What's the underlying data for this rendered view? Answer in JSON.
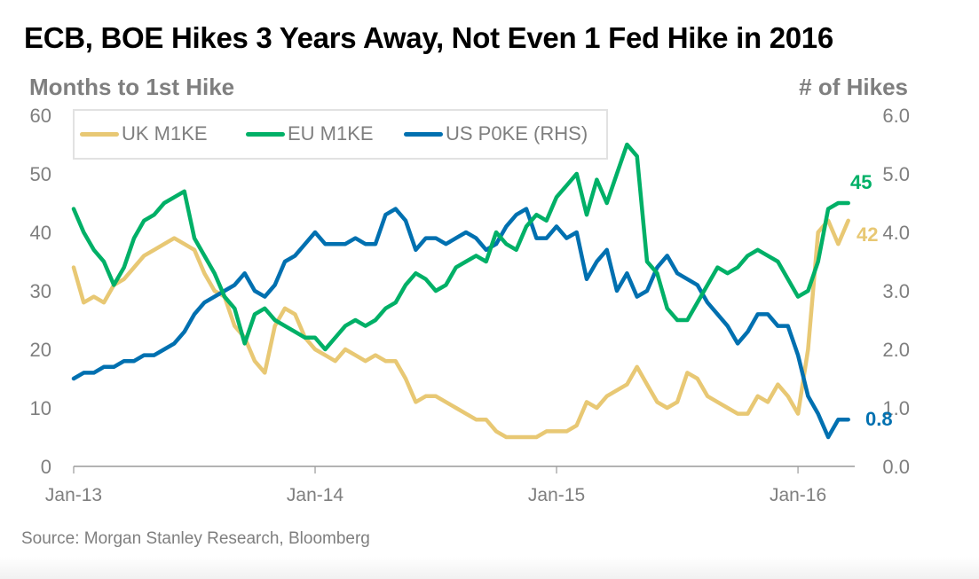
{
  "title": "ECB, BOE Hikes 3 Years Away, Not Even 1 Fed Hike in 2016",
  "source": "Source: Morgan Stanley Research, Bloomberg",
  "chart_data": {
    "type": "line",
    "title": "ECB, BOE Hikes 3 Years Away, Not Even 1 Fed Hike in 2016",
    "ylabel": "Months to 1st Hike",
    "y2label": "# of Hikes",
    "xlabel": "",
    "x_unit": "months since Jan-13",
    "x_ticks": [
      {
        "label": "Jan-13",
        "x": 0
      },
      {
        "label": "Jan-14",
        "x": 12
      },
      {
        "label": "Jan-15",
        "x": 24
      },
      {
        "label": "Jan-16",
        "x": 36
      }
    ],
    "xlim": [
      0,
      38.6
    ],
    "ylim": [
      0,
      60
    ],
    "y_ticks": [
      "0",
      "10",
      "20",
      "30",
      "40",
      "50",
      "60"
    ],
    "y2lim": [
      0,
      6
    ],
    "y2_ticks": [
      "0.0",
      "1.0",
      "2.0",
      "3.0",
      "4.0",
      "5.0",
      "6.0"
    ],
    "grid": false,
    "legend": "top-left",
    "x_step": 0.5,
    "series": [
      {
        "name": "UK M1KE",
        "axis": "left",
        "color": "#e8c874",
        "end_label": "42",
        "values": [
          34,
          28,
          29,
          28,
          31,
          32,
          34,
          36,
          37,
          38,
          39,
          38,
          37,
          33,
          30,
          29,
          24,
          22,
          18,
          16,
          24,
          27,
          26,
          22,
          20,
          19,
          18,
          20,
          19,
          18,
          19,
          18,
          18,
          15,
          11,
          12,
          12,
          11,
          10,
          9,
          8,
          8,
          6,
          5,
          5,
          5,
          5,
          6,
          6,
          6,
          7,
          11,
          10,
          12,
          13,
          14,
          17,
          14,
          11,
          10,
          11,
          16,
          15,
          12,
          11,
          10,
          9,
          9,
          12,
          11,
          14,
          12,
          9,
          20,
          40,
          42,
          38,
          42
        ]
      },
      {
        "name": "EU M1KE",
        "axis": "left",
        "color": "#00b067",
        "end_label": "45",
        "values": [
          44,
          40,
          37,
          35,
          31,
          34,
          39,
          42,
          43,
          45,
          46,
          47,
          39,
          36,
          33,
          29,
          27,
          21,
          26,
          27,
          25,
          24,
          23,
          22,
          22,
          20,
          22,
          24,
          25,
          24,
          25,
          27,
          28,
          31,
          33,
          32,
          30,
          31,
          34,
          35,
          36,
          35,
          40,
          38,
          37,
          41,
          43,
          42,
          46,
          48,
          50,
          43,
          49,
          45,
          50,
          55,
          53,
          35,
          33,
          27,
          25,
          25,
          28,
          31,
          34,
          33,
          34,
          36,
          37,
          36,
          35,
          32,
          29,
          30,
          35,
          44,
          45,
          45
        ]
      },
      {
        "name": "US P0KE (RHS)",
        "axis": "right",
        "color": "#0070b0",
        "end_label": "0.8",
        "values": [
          1.5,
          1.6,
          1.6,
          1.7,
          1.7,
          1.8,
          1.8,
          1.9,
          1.9,
          2.0,
          2.1,
          2.3,
          2.6,
          2.8,
          2.9,
          3.0,
          3.1,
          3.3,
          3.0,
          2.9,
          3.1,
          3.5,
          3.6,
          3.8,
          4.0,
          3.8,
          3.8,
          3.8,
          3.9,
          3.8,
          3.8,
          4.3,
          4.4,
          4.2,
          3.7,
          3.9,
          3.9,
          3.8,
          3.9,
          4.0,
          3.9,
          3.7,
          3.8,
          4.1,
          4.3,
          4.4,
          3.9,
          3.9,
          4.1,
          3.9,
          4.0,
          3.2,
          3.5,
          3.7,
          3.0,
          3.3,
          2.9,
          3.0,
          3.4,
          3.6,
          3.3,
          3.2,
          3.1,
          2.8,
          2.6,
          2.4,
          2.1,
          2.3,
          2.6,
          2.6,
          2.4,
          2.4,
          1.9,
          1.2,
          0.9,
          0.5,
          0.8,
          0.8
        ]
      }
    ]
  }
}
